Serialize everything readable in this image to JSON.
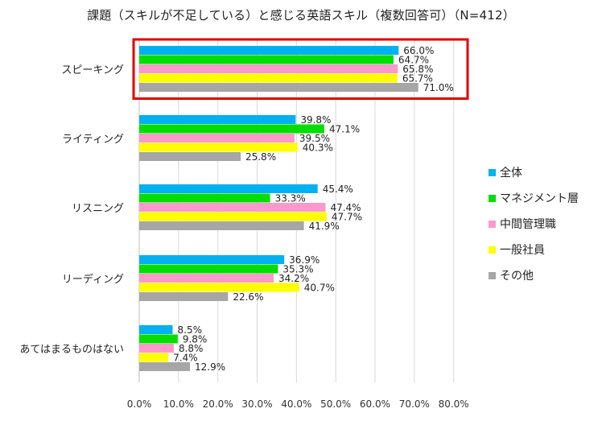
{
  "chart_data": {
    "type": "bar",
    "orientation": "horizontal",
    "title": "課題（スキルが不足している）と感じる英語スキル（複数回答可）（N=412）",
    "categories": [
      "スピーキング",
      "ライティング",
      "リスニング",
      "リーディング",
      "あてはまるものはない"
    ],
    "series": [
      {
        "name": "全体",
        "color": "#00B0F0",
        "values": [
          66.0,
          39.8,
          45.4,
          36.9,
          8.5
        ]
      },
      {
        "name": "マネジメント層",
        "color": "#00DD00",
        "values": [
          64.7,
          47.1,
          33.3,
          35.3,
          9.8
        ]
      },
      {
        "name": "中間管理職",
        "color": "#FF99CC",
        "values": [
          65.8,
          39.5,
          47.4,
          34.2,
          8.8
        ]
      },
      {
        "name": "一般社員",
        "color": "#FFFF00",
        "values": [
          65.7,
          40.3,
          47.7,
          40.7,
          7.4
        ]
      },
      {
        "name": "その他",
        "color": "#A6A6A6",
        "values": [
          71.0,
          25.8,
          41.9,
          22.6,
          12.9
        ]
      }
    ],
    "xlim": [
      0,
      80
    ],
    "x_ticks": [
      "0.0%",
      "10.0%",
      "20.0%",
      "30.0%",
      "40.0%",
      "50.0%",
      "60.0%",
      "70.0%",
      "80.0%"
    ],
    "grid": true,
    "legend_position": "right",
    "highlight_category": "スピーキング",
    "highlight_color": "#E00000"
  }
}
